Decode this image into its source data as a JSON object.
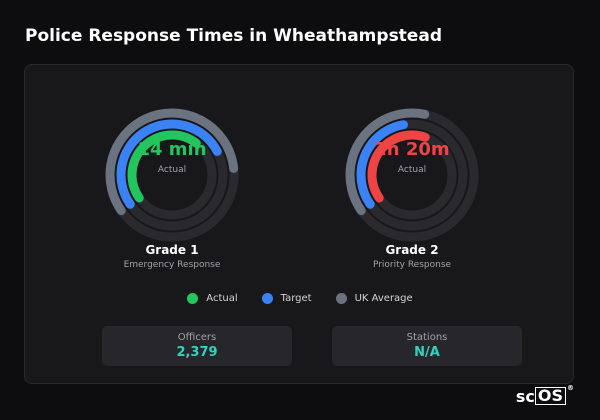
{
  "title": "Police Response Times in Wheathampstead",
  "colors": {
    "actual": "#22c55e",
    "actual_grade2": "#ef4444",
    "target": "#3b82f6",
    "uk_average": "#6b7280",
    "track": "#2a2a2e",
    "accent": "#2dd4bf"
  },
  "gauges": [
    {
      "value": "14 min",
      "sub": "Actual",
      "title": "Grade 1",
      "subtitle": "Emergency Response",
      "value_color": "#22c55e",
      "fractions": {
        "uk_average": 0.58,
        "target": 0.52,
        "actual": 0.45
      }
    },
    {
      "value": "2h 20m",
      "sub": "Actual",
      "title": "Grade 2",
      "subtitle": "Priority Response",
      "value_color": "#ef4444",
      "fractions": {
        "uk_average": 0.38,
        "target": 0.32,
        "actual": 0.4
      }
    }
  ],
  "legend": [
    {
      "label": "Actual",
      "color": "#22c55e"
    },
    {
      "label": "Target",
      "color": "#3b82f6"
    },
    {
      "label": "UK Average",
      "color": "#6b7280"
    }
  ],
  "stats": [
    {
      "label": "Officers",
      "value": "2,379"
    },
    {
      "label": "Stations",
      "value": "N/A"
    }
  ],
  "brand": {
    "text": "sc",
    "boxed": "OS",
    "reg": "®"
  }
}
